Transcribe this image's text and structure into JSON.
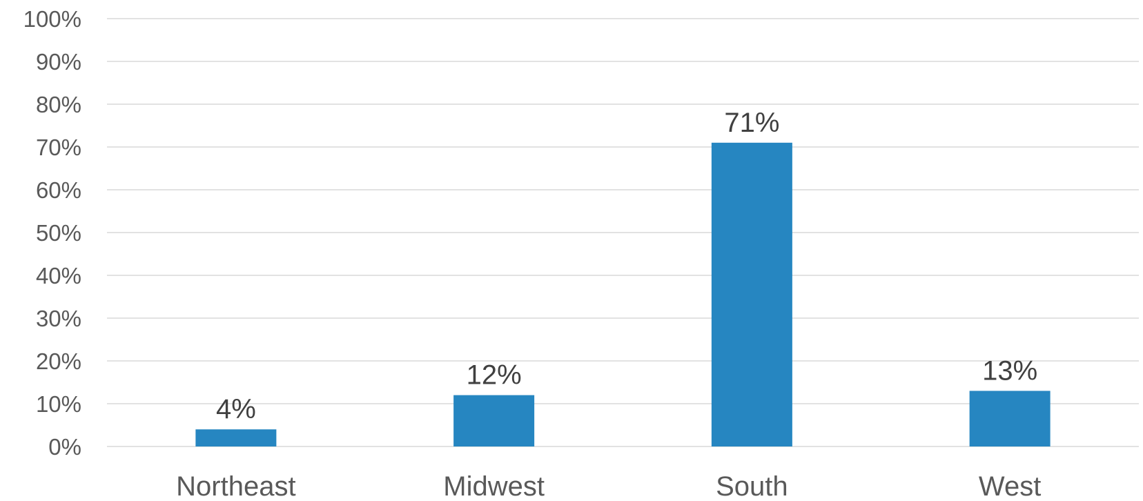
{
  "chart_data": {
    "type": "bar",
    "categories": [
      "Northeast",
      "Midwest",
      "South",
      "West"
    ],
    "values": [
      4,
      12,
      71,
      13
    ],
    "data_labels": [
      "4%",
      "12%",
      "71%",
      "13%"
    ],
    "ylim": [
      0,
      100
    ],
    "yticks": [
      0,
      10,
      20,
      30,
      40,
      50,
      60,
      70,
      80,
      90,
      100
    ],
    "ytick_labels": [
      "0%",
      "10%",
      "20%",
      "30%",
      "40%",
      "50%",
      "60%",
      "70%",
      "80%",
      "90%",
      "100%"
    ],
    "title": "",
    "xlabel": "",
    "ylabel": "",
    "grid": true,
    "legend": "none",
    "bar_color": "#2686c1",
    "grid_color": "#d9d9d9"
  }
}
